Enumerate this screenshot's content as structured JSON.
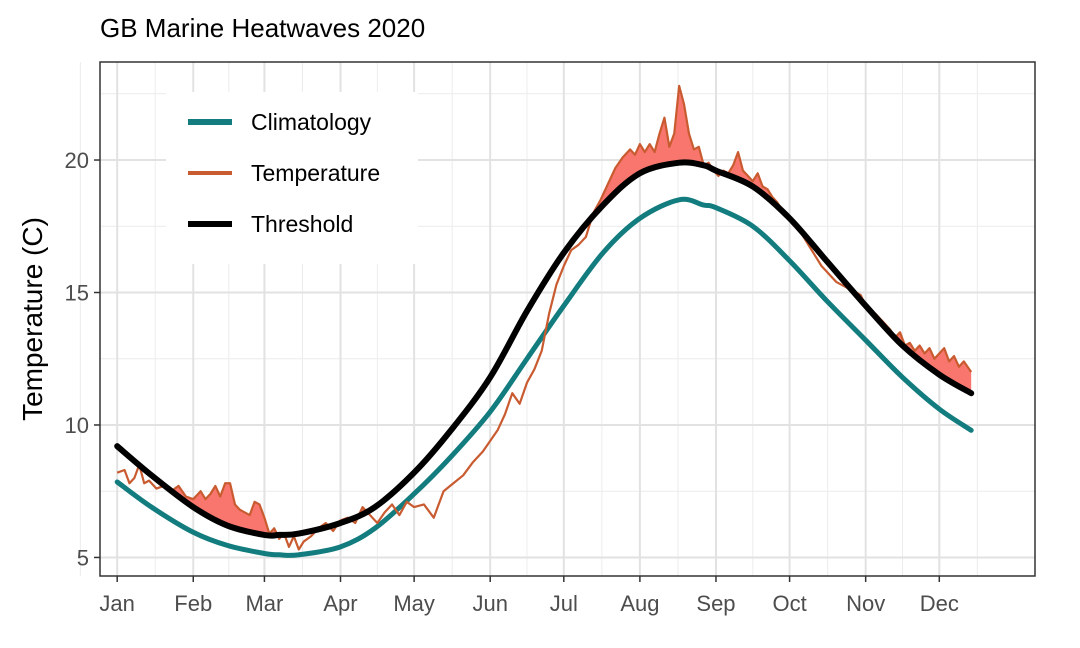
{
  "chart_data": {
    "type": "line",
    "title": "GB Marine Heatwaves 2020",
    "xlabel": "",
    "ylabel": "Temperature (C)",
    "x_unit": "day of year 2020",
    "xlim": [
      -6,
      375
    ],
    "ylim": [
      4.3,
      23.7
    ],
    "y_ticks": [
      5,
      10,
      15,
      20
    ],
    "x_ticks": [
      {
        "day": 1,
        "label": "Jan"
      },
      {
        "day": 32,
        "label": "Feb"
      },
      {
        "day": 61,
        "label": "Mar"
      },
      {
        "day": 92,
        "label": "Apr"
      },
      {
        "day": 122,
        "label": "May"
      },
      {
        "day": 153,
        "label": "Jun"
      },
      {
        "day": 183,
        "label": "Jul"
      },
      {
        "day": 214,
        "label": "Aug"
      },
      {
        "day": 245,
        "label": "Sep"
      },
      {
        "day": 275,
        "label": "Oct"
      },
      {
        "day": 306,
        "label": "Nov"
      },
      {
        "day": 336,
        "label": "Dec"
      }
    ],
    "grid": true,
    "legend_position": "top-left",
    "fill_color": "#F8766D",
    "series": [
      {
        "name": "Climatology",
        "color": "#127C7E",
        "x": [
          1,
          15,
          32,
          46,
          61,
          67,
          75,
          92,
          106,
          122,
          137,
          153,
          168,
          183,
          199,
          214,
          230,
          240,
          245,
          260,
          275,
          290,
          306,
          321,
          336,
          349
        ],
        "y": [
          7.85,
          6.9,
          5.95,
          5.45,
          5.15,
          5.1,
          5.1,
          5.4,
          6.1,
          7.4,
          8.8,
          10.5,
          12.5,
          14.5,
          16.5,
          17.8,
          18.5,
          18.3,
          18.2,
          17.5,
          16.2,
          14.7,
          13.2,
          11.8,
          10.6,
          9.8
        ]
      },
      {
        "name": "Temperature",
        "color": "#C95B30",
        "x": [
          1,
          4,
          6,
          8,
          10,
          12,
          14,
          17,
          20,
          23,
          26,
          29,
          32,
          35,
          37,
          39,
          41,
          43,
          45,
          47,
          49,
          51,
          53,
          55,
          57,
          59,
          61,
          63,
          65,
          67,
          69,
          71,
          73,
          75,
          77,
          80,
          83,
          86,
          89,
          92,
          95,
          98,
          101,
          104,
          107,
          110,
          113,
          116,
          119,
          122,
          126,
          130,
          134,
          138,
          142,
          146,
          150,
          153,
          156,
          159,
          162,
          165,
          168,
          171,
          174,
          177,
          180,
          183,
          186,
          189,
          192,
          195,
          198,
          201,
          204,
          207,
          210,
          212,
          214,
          216,
          218,
          220,
          222,
          224,
          226,
          228,
          230,
          232,
          234,
          236,
          238,
          240,
          242,
          244,
          246,
          248,
          250,
          252,
          254,
          256,
          258,
          260,
          262,
          264,
          266,
          268,
          270,
          272,
          274,
          276,
          278,
          280,
          282,
          284,
          286,
          288,
          290,
          292,
          294,
          296,
          298,
          300,
          302,
          304,
          306,
          308,
          310,
          312,
          314,
          316,
          318,
          320,
          322,
          324,
          326,
          328,
          330,
          332,
          334,
          336,
          338,
          340,
          342,
          344,
          346,
          349
        ],
        "y": [
          8.2,
          8.3,
          7.8,
          8.0,
          8.5,
          7.8,
          7.9,
          7.6,
          7.7,
          7.5,
          7.7,
          7.3,
          7.2,
          7.5,
          7.2,
          7.4,
          7.7,
          7.3,
          7.8,
          7.8,
          7.0,
          6.8,
          6.7,
          6.6,
          7.1,
          7.0,
          6.5,
          5.9,
          6.1,
          5.7,
          5.9,
          5.4,
          5.8,
          5.3,
          5.6,
          5.8,
          6.1,
          6.3,
          6.0,
          6.4,
          6.5,
          6.3,
          6.9,
          6.6,
          6.3,
          6.7,
          7.0,
          6.6,
          7.1,
          6.9,
          7.0,
          6.5,
          7.5,
          7.8,
          8.1,
          8.6,
          9.0,
          9.4,
          9.8,
          10.4,
          11.2,
          10.8,
          11.6,
          12.1,
          12.8,
          14.2,
          15.3,
          16.0,
          16.6,
          16.8,
          17.1,
          18.0,
          18.5,
          19.1,
          19.7,
          20.1,
          20.4,
          20.2,
          20.6,
          20.3,
          20.6,
          20.3,
          21.0,
          21.6,
          20.5,
          21.0,
          22.8,
          22.1,
          21.0,
          20.4,
          20.5,
          19.8,
          19.9,
          19.6,
          19.4,
          19.6,
          19.5,
          19.8,
          20.3,
          19.6,
          19.4,
          19.2,
          19.5,
          19.0,
          18.9,
          18.6,
          18.4,
          18.1,
          17.9,
          17.6,
          17.4,
          17.2,
          16.9,
          16.6,
          16.3,
          16.0,
          15.8,
          15.6,
          15.4,
          15.3,
          15.2,
          15.1,
          15.0,
          14.9,
          14.5,
          14.3,
          14.2,
          14.0,
          13.8,
          13.6,
          13.3,
          13.5,
          13.0,
          13.1,
          12.8,
          13.0,
          12.7,
          12.9,
          12.5,
          12.7,
          12.9,
          12.4,
          12.6,
          12.2,
          12.4,
          12.0
        ]
      },
      {
        "name": "Threshold",
        "color": "#000000",
        "x": [
          1,
          15,
          32,
          46,
          61,
          67,
          75,
          92,
          106,
          122,
          137,
          153,
          168,
          183,
          199,
          214,
          230,
          240,
          245,
          260,
          275,
          290,
          306,
          321,
          336,
          349
        ],
        "y": [
          9.2,
          8.1,
          6.9,
          6.2,
          5.85,
          5.85,
          5.9,
          6.3,
          6.9,
          8.2,
          9.8,
          11.8,
          14.3,
          16.5,
          18.3,
          19.5,
          19.9,
          19.8,
          19.6,
          19.0,
          17.8,
          16.2,
          14.5,
          13.0,
          11.9,
          11.2
        ]
      }
    ]
  }
}
